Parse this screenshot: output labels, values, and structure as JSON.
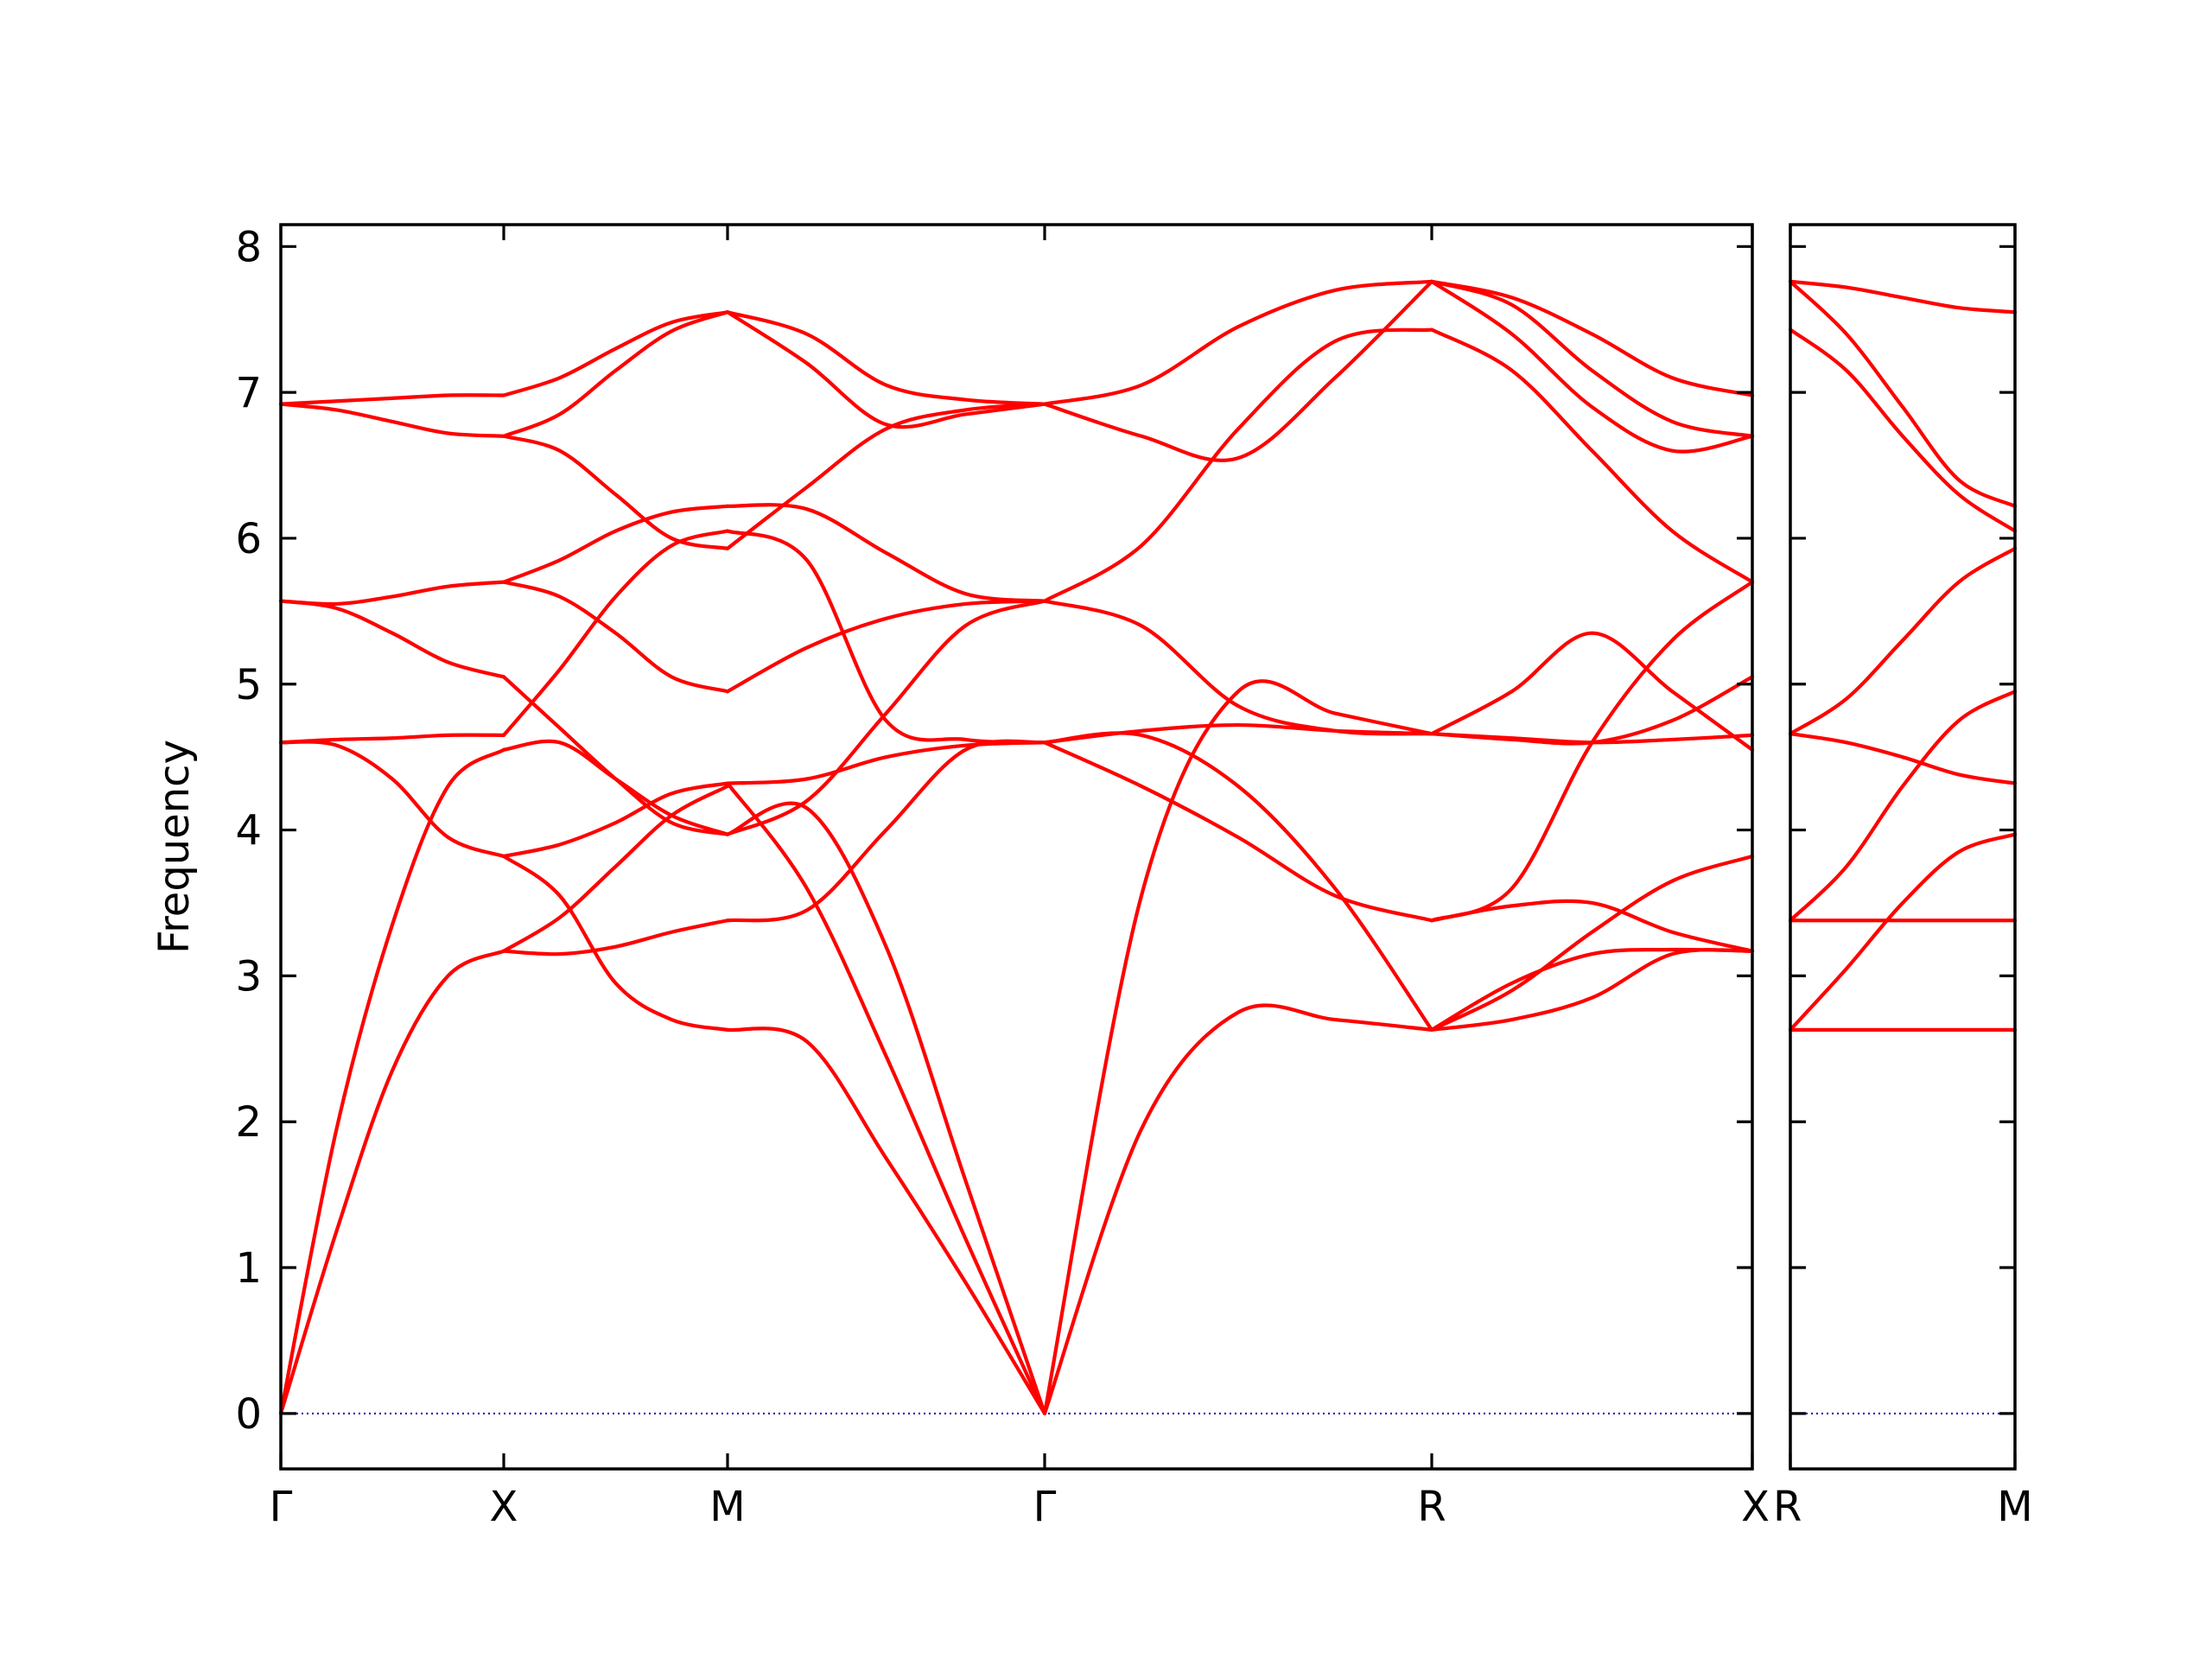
{
  "chart_data": {
    "type": "line",
    "title": "",
    "ylabel": "Frequency",
    "xlabel": "",
    "ylim": [
      -0.38,
      8.15
    ],
    "yticks": [
      0,
      1,
      2,
      3,
      4,
      5,
      6,
      7,
      8
    ],
    "grid": false,
    "colors": {
      "bands": "#ff0000",
      "zero_line": "#0000aa"
    },
    "panels": [
      {
        "segments": [
          {
            "labels": [
              "Γ",
              "X"
            ],
            "x": [
              0,
              0.25,
              0.5,
              0.75,
              1
            ],
            "series": [
              {
                "values": [
                  0,
                  1.25,
                  2.35,
                  3.0,
                  3.17
                ]
              },
              {
                "values": [
                  0,
                  1.95,
                  3.35,
                  4.3,
                  4.55
                ]
              },
              {
                "values": [
                  4.6,
                  4.58,
                  4.35,
                  3.95,
                  3.82
                ]
              },
              {
                "values": [
                  4.6,
                  4.62,
                  4.63,
                  4.65,
                  4.65
                ]
              },
              {
                "values": [
                  5.57,
                  5.52,
                  5.35,
                  5.15,
                  5.05
                ]
              },
              {
                "values": [
                  5.57,
                  5.55,
                  5.6,
                  5.67,
                  5.7
                ]
              },
              {
                "values": [
                  6.92,
                  6.88,
                  6.8,
                  6.72,
                  6.7
                ]
              },
              {
                "values": [
                  6.92,
                  6.94,
                  6.96,
                  6.98,
                  6.98
                ]
              }
            ]
          },
          {
            "labels": [
              "X",
              "M"
            ],
            "x": [
              0,
              0.25,
              0.5,
              0.75,
              1
            ],
            "series": [
              {
                "values": [
                  3.17,
                  3.15,
                  3.2,
                  3.3,
                  3.38
                ]
              },
              {
                "values": [
                  3.17,
                  3.4,
                  3.75,
                  4.1,
                  4.3
                ]
              },
              {
                "values": [
                  3.82,
                  3.55,
                  2.95,
                  2.7,
                  2.63
                ]
              },
              {
                "values": [
                  3.82,
                  3.9,
                  4.05,
                  4.25,
                  4.32
                ]
              },
              {
                "values": [
                  4.55,
                  4.6,
                  4.35,
                  4.1,
                  3.97
                ]
              },
              {
                "values": [
                  4.65,
                  5.1,
                  5.6,
                  5.95,
                  6.05
                ]
              },
              {
                "values": [
                  5.05,
                  4.7,
                  4.35,
                  4.05,
                  3.97
                ]
              },
              {
                "values": [
                  5.7,
                  5.6,
                  5.35,
                  5.05,
                  4.95
                ]
              },
              {
                "values": [
                  5.7,
                  5.85,
                  6.05,
                  6.18,
                  6.22
                ]
              },
              {
                "values": [
                  6.7,
                  6.6,
                  6.3,
                  6.0,
                  5.93
                ]
              },
              {
                "values": [
                  6.7,
                  6.85,
                  7.15,
                  7.42,
                  7.55
                ]
              },
              {
                "values": [
                  6.98,
                  7.1,
                  7.3,
                  7.48,
                  7.55
                ]
              }
            ]
          },
          {
            "labels": [
              "M",
              "Γ"
            ],
            "x": [
              0,
              0.25,
              0.5,
              0.75,
              1
            ],
            "series": [
              {
                "values": [
                  2.63,
                  2.55,
                  1.75,
                  0.9,
                  0
                ]
              },
              {
                "values": [
                  4.32,
                  3.6,
                  2.45,
                  1.2,
                  0
                ]
              },
              {
                "values": [
                  3.97,
                  4.15,
                  3.2,
                  1.6,
                  0
                ]
              },
              {
                "values": [
                  3.38,
                  3.45,
                  4.0,
                  4.55,
                  4.6
                ]
              },
              {
                "values": [
                  4.32,
                  4.35,
                  4.5,
                  4.58,
                  4.6
                ]
              },
              {
                "values": [
                  3.97,
                  4.2,
                  4.8,
                  5.4,
                  5.57
                ]
              },
              {
                "values": [
                  4.95,
                  5.25,
                  5.45,
                  5.55,
                  5.57
                ]
              },
              {
                "values": [
                  6.05,
                  5.85,
                  4.75,
                  4.62,
                  4.6
                ]
              },
              {
                "values": [
                  6.22,
                  6.2,
                  5.9,
                  5.62,
                  5.57
                ]
              },
              {
                "values": [
                  5.93,
                  6.35,
                  6.75,
                  6.88,
                  6.92
                ]
              },
              {
                "values": [
                  7.55,
                  7.2,
                  6.78,
                  6.85,
                  6.92
                ]
              },
              {
                "values": [
                  7.55,
                  7.4,
                  7.05,
                  6.95,
                  6.92
                ]
              }
            ]
          },
          {
            "labels": [
              "Γ",
              "R"
            ],
            "x": [
              0,
              0.25,
              0.5,
              0.75,
              1
            ],
            "series": [
              {
                "values": [
                  0,
                  1.95,
                  2.75,
                  2.7,
                  2.63
                ]
              },
              {
                "values": [
                  0,
                  3.55,
                  4.95,
                  4.8,
                  4.66
                ]
              },
              {
                "values": [
                  4.6,
                  4.3,
                  3.95,
                  3.55,
                  3.38
                ]
              },
              {
                "values": [
                  4.6,
                  4.65,
                  4.3,
                  3.6,
                  2.63
                ]
              },
              {
                "values": [
                  5.57,
                  5.4,
                  4.85,
                  4.68,
                  4.66
                ]
              },
              {
                "values": [
                  4.6,
                  4.68,
                  4.72,
                  4.68,
                  4.66
                ]
              },
              {
                "values": [
                  6.92,
                  6.7,
                  6.55,
                  7.1,
                  7.76
                ]
              },
              {
                "values": [
                  5.57,
                  5.95,
                  6.75,
                  7.35,
                  7.43
                ]
              },
              {
                "values": [
                  6.92,
                  7.05,
                  7.45,
                  7.7,
                  7.76
                ]
              }
            ]
          },
          {
            "labels": [
              "R",
              "X"
            ],
            "x": [
              0,
              0.25,
              0.5,
              0.75,
              1
            ],
            "series": [
              {
                "values": [
                  2.63,
                  2.7,
                  2.85,
                  3.15,
                  3.17
                ]
              },
              {
                "values": [
                  2.63,
                  2.95,
                  3.15,
                  3.18,
                  3.17
                ]
              },
              {
                "values": [
                  3.38,
                  3.48,
                  3.5,
                  3.3,
                  3.17
                ]
              },
              {
                "values": [
                  2.63,
                  2.9,
                  3.3,
                  3.65,
                  3.82
                ]
              },
              {
                "values": [
                  3.38,
                  3.6,
                  4.6,
                  5.3,
                  5.7
                ]
              },
              {
                "values": [
                  4.66,
                  4.95,
                  5.35,
                  4.95,
                  4.55
                ]
              },
              {
                "values": [
                  4.66,
                  4.62,
                  4.6,
                  4.75,
                  5.05
                ]
              },
              {
                "values": [
                  4.66,
                  4.63,
                  4.6,
                  4.62,
                  4.65
                ]
              },
              {
                "values": [
                  7.43,
                  7.15,
                  6.6,
                  6.05,
                  5.7
                ]
              },
              {
                "values": [
                  7.76,
                  7.4,
                  6.9,
                  6.6,
                  6.7
                ]
              },
              {
                "values": [
                  7.76,
                  7.6,
                  7.15,
                  6.8,
                  6.7
                ]
              },
              {
                "values": [
                  7.76,
                  7.65,
                  7.4,
                  7.1,
                  6.98
                ]
              }
            ]
          }
        ]
      },
      {
        "segments": [
          {
            "labels": [
              "R",
              "M"
            ],
            "x": [
              0,
              0.25,
              0.5,
              0.75,
              1
            ],
            "series": [
              {
                "values": [
                  2.63,
                  2.63,
                  2.63,
                  2.63,
                  2.63
                ]
              },
              {
                "values": [
                  2.63,
                  3.05,
                  3.5,
                  3.85,
                  3.97
                ]
              },
              {
                "values": [
                  3.38,
                  3.38,
                  3.38,
                  3.38,
                  3.38
                ]
              },
              {
                "values": [
                  3.38,
                  3.75,
                  4.3,
                  4.75,
                  4.95
                ]
              },
              {
                "values": [
                  4.66,
                  4.6,
                  4.5,
                  4.38,
                  4.32
                ]
              },
              {
                "values": [
                  4.66,
                  4.9,
                  5.3,
                  5.7,
                  5.93
                ]
              },
              {
                "values": [
                  7.43,
                  7.15,
                  6.7,
                  6.3,
                  6.05
                ]
              },
              {
                "values": [
                  7.76,
                  7.4,
                  6.9,
                  6.4,
                  6.22
                ]
              },
              {
                "values": [
                  7.76,
                  7.72,
                  7.65,
                  7.58,
                  7.55
                ]
              }
            ]
          }
        ]
      }
    ]
  }
}
